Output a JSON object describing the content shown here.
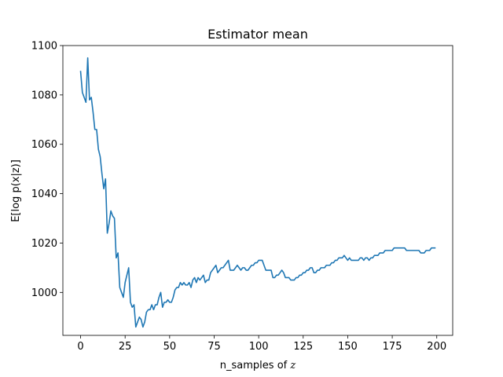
{
  "chart_data": {
    "type": "line",
    "title": "Estimator mean",
    "xlabel": "n_samples of z",
    "xlabel_prefix": "n_samples of ",
    "xlabel_var": "z",
    "ylabel": "E[log p(x|z)]",
    "xlim": [
      -9.95,
      208.95
    ],
    "ylim": [
      982.6,
      1100
    ],
    "xticks": [
      0,
      25,
      50,
      75,
      100,
      125,
      150,
      175,
      200
    ],
    "yticks": [
      1000,
      1020,
      1040,
      1060,
      1080,
      1100
    ],
    "grid": false,
    "legend": false,
    "colors": {
      "line": "#1f77b4",
      "axes": "#000000"
    },
    "x_start": 0,
    "x_step": 1,
    "series": [
      {
        "values": [
          1089.5,
          1081,
          1079,
          1077,
          1095,
          1078,
          1079,
          1073,
          1066,
          1066,
          1058,
          1055,
          1048,
          1042,
          1046,
          1024,
          1028,
          1033,
          1031,
          1030,
          1014,
          1016,
          1002,
          1000,
          998,
          1004,
          1007,
          1010,
          996,
          994,
          995,
          986,
          988,
          990,
          989,
          986,
          988,
          992,
          993,
          993,
          995,
          993,
          995,
          995,
          998,
          1000,
          994,
          996,
          996,
          997,
          996,
          996,
          998,
          1001,
          1002,
          1002,
          1004,
          1003,
          1004,
          1003,
          1003,
          1004,
          1002,
          1005,
          1006,
          1004,
          1006,
          1005,
          1006,
          1007,
          1004,
          1005,
          1005,
          1008,
          1009,
          1010,
          1011,
          1008,
          1009,
          1010,
          1010,
          1011,
          1012,
          1013,
          1009,
          1009,
          1009,
          1010,
          1011,
          1010,
          1009,
          1010,
          1010,
          1009,
          1009,
          1010,
          1011,
          1011,
          1012,
          1012,
          1013,
          1013,
          1013,
          1011,
          1009,
          1009,
          1009,
          1009,
          1006,
          1006,
          1007,
          1007,
          1008,
          1009,
          1008,
          1006,
          1006,
          1006,
          1005,
          1005,
          1005,
          1006,
          1006,
          1007,
          1007,
          1008,
          1008,
          1009,
          1009,
          1010,
          1010,
          1008,
          1008,
          1009,
          1009,
          1010,
          1010,
          1010,
          1011,
          1011,
          1011,
          1012,
          1012,
          1013,
          1013,
          1014,
          1014,
          1014,
          1015,
          1014,
          1013,
          1014,
          1013,
          1013,
          1013,
          1013,
          1013,
          1014,
          1014,
          1013,
          1014,
          1014,
          1013,
          1014,
          1014,
          1015,
          1015,
          1015,
          1016,
          1016,
          1016,
          1017,
          1017,
          1017,
          1017,
          1017,
          1018,
          1018,
          1018,
          1018,
          1018,
          1018,
          1018,
          1017,
          1017,
          1017,
          1017,
          1017,
          1017,
          1017,
          1017,
          1016,
          1016,
          1016,
          1017,
          1017,
          1017,
          1018,
          1018,
          1018
        ]
      }
    ]
  }
}
